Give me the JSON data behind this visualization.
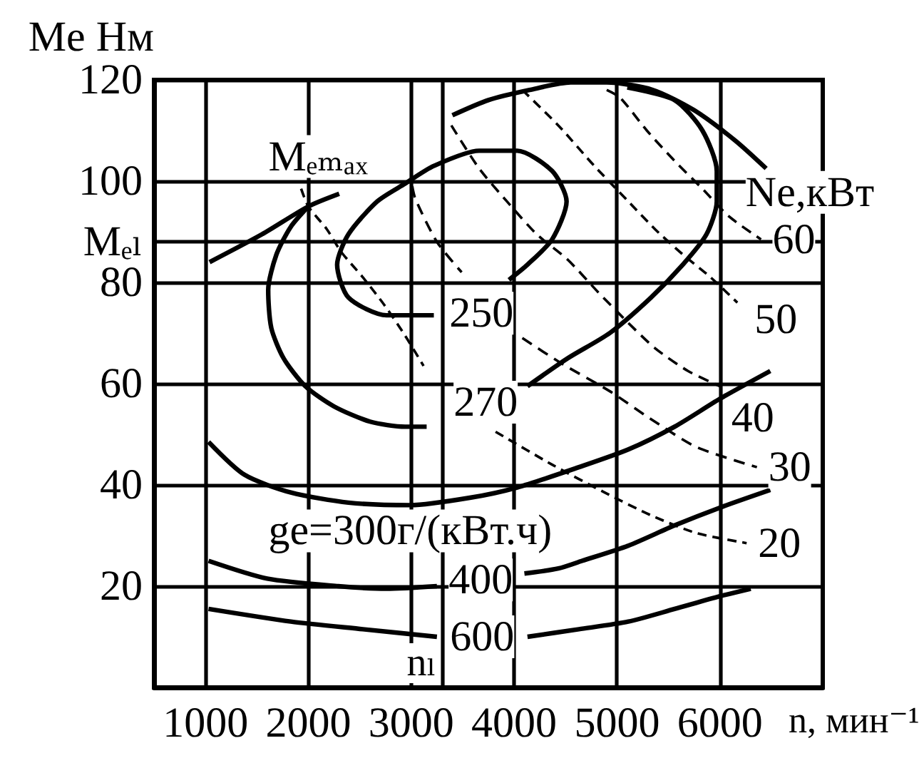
{
  "chart_data": {
    "type": "line",
    "xlabel": "n, мин⁻¹",
    "ylabel": "Me Нм",
    "xlim": [
      500,
      7000
    ],
    "xticks": [
      1000,
      2000,
      3000,
      4000,
      5000,
      6000
    ],
    "ylim": [
      0,
      120
    ],
    "yticks": [
      20,
      40,
      60,
      80,
      {
        "value": 88,
        "label": "Mₑₗ"
      },
      100,
      120
    ],
    "grid": true,
    "series": [
      {
        "color": "#000000",
        "line_style": "solid",
        "x": [
          1040,
          1550,
          2000,
          2300
        ],
        "values": [
          84,
          89.5,
          95,
          97.5
        ]
      },
      {
        "color": "#000000",
        "line_style": "solid",
        "x": [
          3400,
          3750,
          4150,
          4550,
          4900,
          5350,
          5750,
          6150,
          6450
        ],
        "values": [
          113,
          116,
          118,
          119.5,
          119.5,
          118,
          114,
          108,
          102.5
        ]
      },
      {
        "name": "250",
        "color": "#000000",
        "line_style": "solid",
        "x": [
          3220,
          2760,
          2390,
          2280,
          2390,
          2670,
          2940,
          3220,
          3660,
          4030,
          4370,
          4510,
          4370,
          4130,
          3950
        ],
        "values": [
          73.5,
          73.5,
          77,
          83.5,
          89.5,
          96,
          99.5,
          103,
          106,
          106,
          102,
          96,
          88.5,
          83.5,
          80.5
        ]
      },
      {
        "name": "270",
        "color": "#000000",
        "line_style": "solid",
        "x": [
          5100,
          5560,
          5830,
          5970,
          5970,
          5870,
          5640,
          5330,
          4930,
          4520,
          4130,
          3640,
          3150,
          2940,
          2600,
          2250,
          1970,
          1760,
          1640,
          1610,
          1690,
          1830,
          2000
        ],
        "values": [
          118.5,
          116,
          110,
          102,
          96,
          89.5,
          83.5,
          77,
          70,
          65,
          59.5,
          null,
          51.5,
          51.5,
          52.5,
          55.5,
          59.5,
          65,
          71,
          78.5,
          85.5,
          91,
          95
        ]
      },
      {
        "name": "ge=300г/(кВт.ч)",
        "color": "#000000",
        "line_style": "solid",
        "x": [
          1030,
          1380,
          1830,
          2390,
          2990,
          3580,
          4030,
          4630,
          5110,
          5560,
          6000,
          6490
        ],
        "values": [
          48.5,
          42,
          38.5,
          36.5,
          36,
          37.5,
          39.5,
          43.5,
          47,
          51.5,
          57,
          62.5
        ]
      },
      {
        "name": "400",
        "color": "#000000",
        "line_style": "solid",
        "x": [
          1030,
          1600,
          2290,
          2760,
          3250,
          3700,
          4100,
          4430,
          4660,
          5110,
          5560,
          6000,
          6490
        ],
        "values": [
          25,
          21.5,
          20,
          19.5,
          20,
          null,
          22.5,
          23.5,
          25,
          28,
          32,
          35.5,
          39
        ]
      },
      {
        "name": "600",
        "color": "#000000",
        "line_style": "solid",
        "x": [
          1030,
          1830,
          2530,
          3250,
          3700,
          4130,
          4630,
          5110,
          5560,
          6000,
          6300
        ],
        "values": [
          15.5,
          13,
          11.5,
          10,
          null,
          10,
          11.5,
          13,
          15.5,
          18,
          19.5
        ]
      },
      {
        "name": "20",
        "color": "#000000",
        "line_style": "dashed",
        "x": [
          1930,
          2000,
          2180,
          2320,
          2530,
          2740,
          2940,
          3120,
          3500,
          3820,
          4370,
          4880,
          5330,
          5770,
          6260
        ],
        "values": [
          98.5,
          95,
          90.5,
          86,
          81,
          75.5,
          69.5,
          63.5,
          null,
          50.5,
          44,
          38.5,
          34,
          30.5,
          28.5
        ]
      },
      {
        "name": "30",
        "color": "#000000",
        "line_style": "dashed",
        "x": [
          3010,
          3040,
          3250,
          3490,
          3800,
          4080,
          4460,
          4930,
          5330,
          5770,
          6360
        ],
        "values": [
          99,
          96.5,
          88,
          82,
          null,
          69,
          64,
          58.5,
          53,
          47.5,
          43.5
        ]
      },
      {
        "name": "40",
        "color": "#000000",
        "line_style": "dashed",
        "x": [
          3390,
          3660,
          3930,
          4220,
          4520,
          4820,
          5110,
          5370,
          5690,
          6000
        ],
        "values": [
          111,
          102.5,
          96,
          89.5,
          84.5,
          78,
          72,
          67,
          62.5,
          59.5
        ]
      },
      {
        "name": "50",
        "color": "#000000",
        "line_style": "dashed",
        "x": [
          4080,
          4430,
          4780,
          5110,
          5370,
          5640,
          5910,
          6170
        ],
        "values": [
          118,
          111,
          103,
          96,
          90.5,
          85.5,
          81,
          76
        ]
      },
      {
        "name": "60",
        "color": "#000000",
        "line_style": "dashed",
        "x": [
          4900,
          5030,
          5290,
          5560,
          5830,
          6090,
          6400
        ],
        "values": [
          118,
          116.5,
          110,
          104,
          98.5,
          93,
          88.5
        ]
      }
    ],
    "ref_lines": [
      {
        "axis": "x",
        "value": 3300,
        "label": "nₗ"
      }
    ],
    "annotations": [
      {
        "text": "Mₑₘₐₓ",
        "x": 2000,
        "y": 95
      },
      "Ne,кВт"
    ]
  }
}
